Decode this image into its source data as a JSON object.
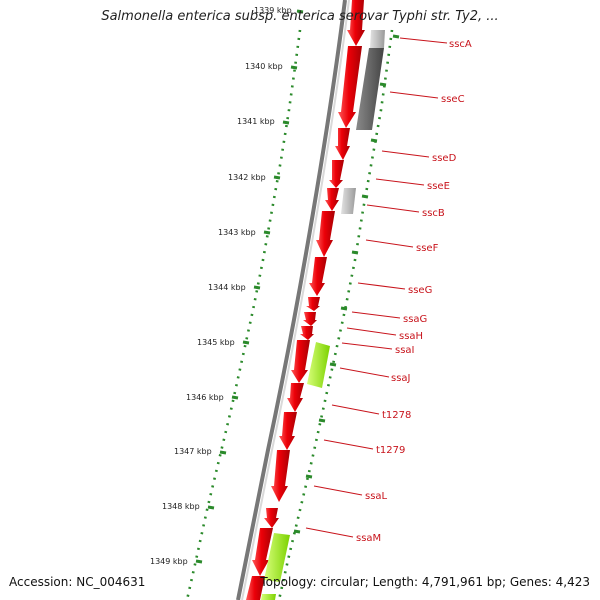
{
  "title": "Salmonella enterica subsp. enterica serovar Typhi str. Ty2, ...",
  "footer": {
    "accession": "Accession: NC_004631",
    "topology": "Topology: circular; Length: 4,791,961 bp; Genes: 4,423"
  },
  "colors": {
    "forward_gene": "#e8000a",
    "pseudogene": "#5a5a5a",
    "other_feature": "#a6ff2a",
    "backbone": "#777777",
    "tick": "#2b8a2b",
    "gene_label": "#c8141c"
  },
  "scale_ticks": [
    "1339 kbp",
    "1340 kbp",
    "1341 kbp",
    "1342 kbp",
    "1343 kbp",
    "1344 kbp",
    "1345 kbp",
    "1346 kbp",
    "1347 kbp",
    "1348 kbp",
    "1349 kbp"
  ],
  "gene_labels": [
    "sscA",
    "sseC",
    "sseD",
    "sseE",
    "sscB",
    "sseF",
    "sseG",
    "ssaG",
    "ssaH",
    "ssaI",
    "ssaJ",
    "t1278",
    "t1279",
    "ssaL",
    "ssaM"
  ]
}
